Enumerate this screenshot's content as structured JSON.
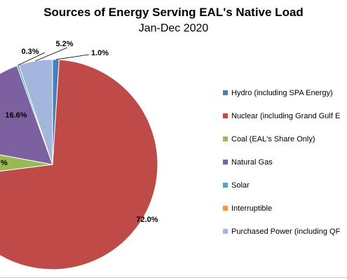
{
  "chart_data": {
    "type": "pie",
    "title": "Sources of Energy Serving EAL's Native Load",
    "subtitle": "Jan-Dec 2020",
    "slices": [
      {
        "label": "Hydro (including SPA Energy)",
        "value": 1.0,
        "display": "1.0%",
        "color": "#4a7ebb"
      },
      {
        "label": "Nuclear (including Grand Gulf E",
        "value": 72.0,
        "display": "72.0%",
        "color": "#be4b48"
      },
      {
        "label": "Coal (EAL's Share Only)",
        "value": 4.9,
        "display": "",
        "color": "#98b954"
      },
      {
        "label": "Natural Gas",
        "value": 16.6,
        "display": "16.6%",
        "color": "#7d60a0"
      },
      {
        "label": "Solar",
        "value": 0.3,
        "display": "0.3%",
        "color": "#46aac5"
      },
      {
        "label": "Interruptible",
        "value": 0.0,
        "display": "",
        "color": "#f79646"
      },
      {
        "label": "Purchased Power (including QF",
        "value": 5.2,
        "display": "5.2%",
        "color": "#a5b6dc"
      }
    ],
    "coal_partial_label": "%",
    "legend_position": "right"
  }
}
